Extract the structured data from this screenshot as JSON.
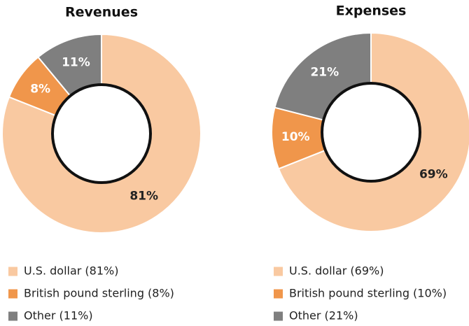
{
  "chart_data": [
    {
      "type": "pie",
      "title": "Revenues",
      "categories": [
        "U.S. dollar (81%)",
        "British pound sterling (8%)",
        "Other (11%)"
      ],
      "values": [
        81,
        8,
        11
      ],
      "value_labels": [
        "81%",
        "8%",
        "11%"
      ],
      "colors": [
        "#f9c9a1",
        "#f0964b",
        "#7f7f7f"
      ]
    },
    {
      "type": "pie",
      "title": "Expenses",
      "categories": [
        "U.S. dollar (69%)",
        "British pound sterling (10%)",
        "Other (21%)"
      ],
      "values": [
        69,
        10,
        21
      ],
      "value_labels": [
        "69%",
        "10%",
        "21%"
      ],
      "colors": [
        "#f9c9a1",
        "#f0964b",
        "#7f7f7f"
      ]
    }
  ]
}
